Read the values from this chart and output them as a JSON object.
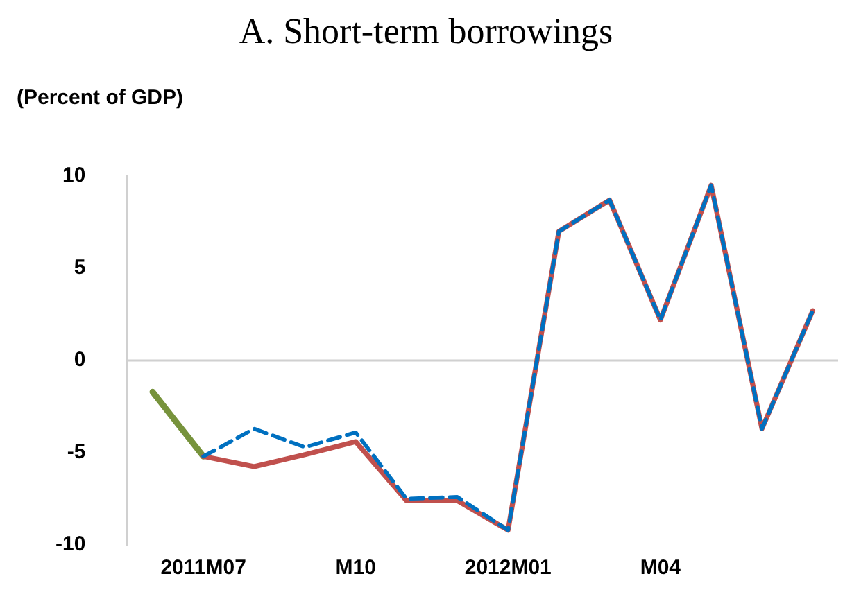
{
  "chart_data": {
    "type": "line",
    "title": "A. Short-term borrowings",
    "ylabel": "(Percent of GDP)",
    "categories": [
      null,
      "2011M07",
      null,
      null,
      "M10",
      null,
      null,
      "2012M01",
      null,
      null,
      "M04",
      null,
      null,
      null
    ],
    "series": [
      {
        "color": "#77933c",
        "values": [
          -1.7,
          -5.2,
          null,
          null,
          null,
          null,
          null,
          null,
          null,
          null,
          null,
          null,
          null,
          null
        ]
      },
      {
        "color": "#c0504d",
        "values": [
          null,
          -5.2,
          -5.75,
          -5.1,
          -4.4,
          -7.6,
          -7.6,
          -9.2,
          7.0,
          8.7,
          2.2,
          9.5,
          -3.7,
          2.7
        ]
      },
      {
        "color": "#0070c0",
        "line_style": "dashed",
        "values": [
          null,
          -5.2,
          -3.7,
          -4.7,
          -3.9,
          -7.5,
          -7.4,
          -9.2,
          7.0,
          8.7,
          2.2,
          9.5,
          -3.7,
          2.7
        ]
      }
    ],
    "ref_lines": [
      {
        "axis": "y",
        "value": 0,
        "color": "#d0d0d0"
      }
    ],
    "ylim": [
      -10,
      10
    ],
    "yticks": [
      -10,
      -5,
      0,
      5,
      10
    ],
    "grid": false,
    "legend": false,
    "marker": "none"
  }
}
